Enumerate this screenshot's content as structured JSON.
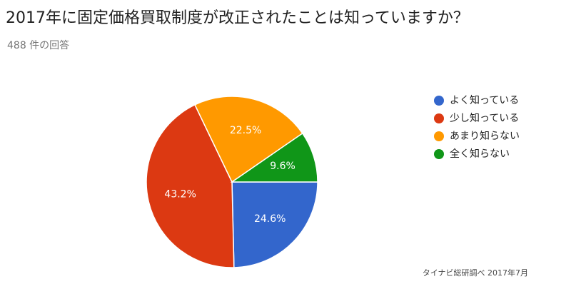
{
  "chart_data": {
    "type": "pie",
    "title": "2017年に固定価格買取制度が改正されたことは知っていますか？",
    "subtitle": "488 件の回答",
    "categories": [
      "よく知っている",
      "少し知っている",
      "あまり知らない",
      "全く知らない"
    ],
    "values": [
      24.6,
      43.2,
      22.5,
      9.6
    ],
    "value_labels": [
      "24.6%",
      "43.2%",
      "22.5%",
      "9.6%"
    ],
    "colors": [
      "#3366cc",
      "#dc3912",
      "#ff9900",
      "#109618"
    ],
    "legend": "right",
    "source": "タイナビ総研調べ 2017年7月"
  }
}
